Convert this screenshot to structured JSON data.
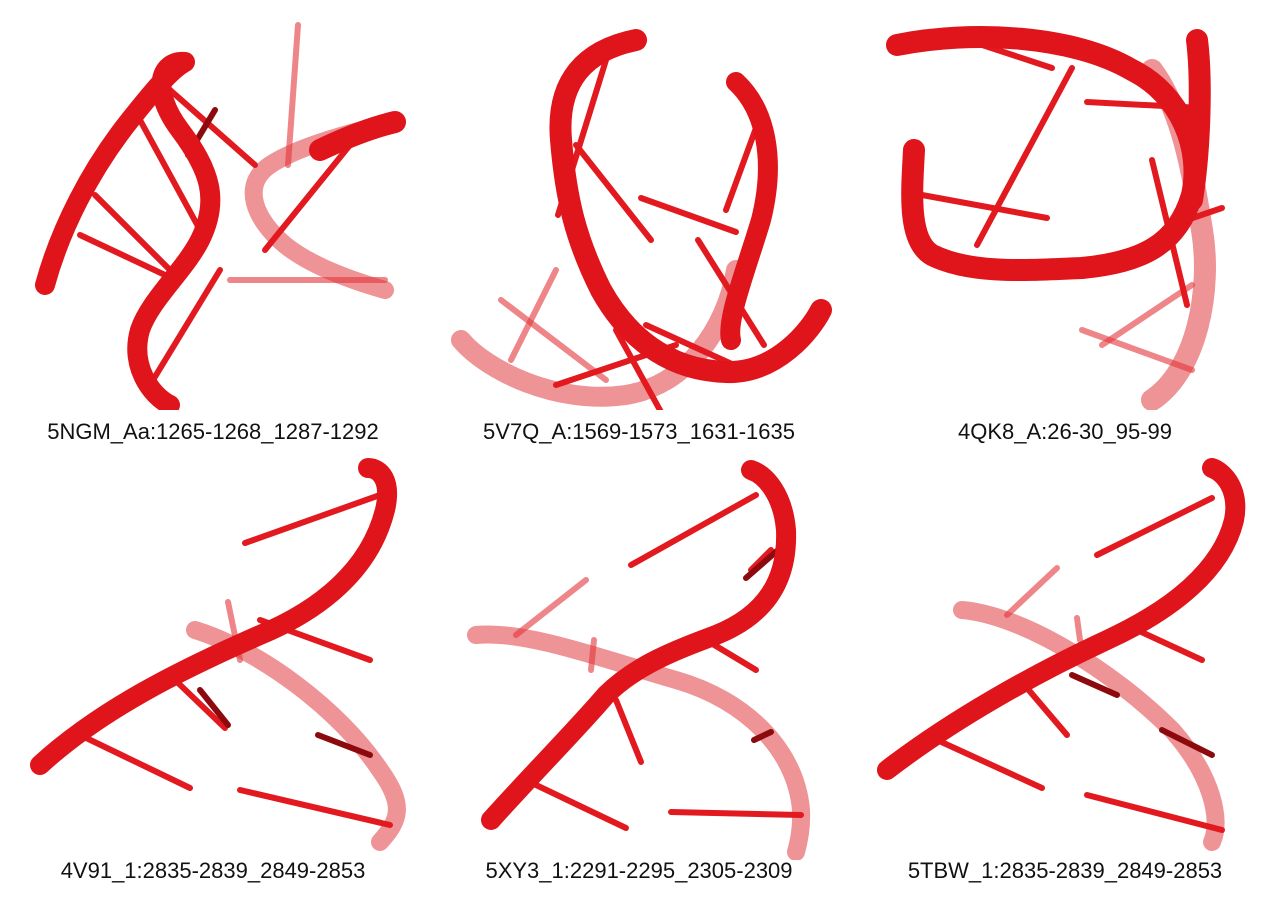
{
  "panels": [
    {
      "id": "p1",
      "label": "5NGM_Aa:1265-1268_1287-1292"
    },
    {
      "id": "p2",
      "label": "5V7Q_A:1569-1573_1631-1635"
    },
    {
      "id": "p3",
      "label": "4QK8_A:26-30_95-99"
    },
    {
      "id": "p4",
      "label": "4V91_1:2835-2839_2849-2853"
    },
    {
      "id": "p5",
      "label": "5XY3_1:2291-2295_2305-2309"
    },
    {
      "id": "p6",
      "label": "5TBW_1:2835-2839_2849-2853"
    }
  ],
  "colors": {
    "backbone": "#e0141b",
    "background": "#ffffff"
  }
}
